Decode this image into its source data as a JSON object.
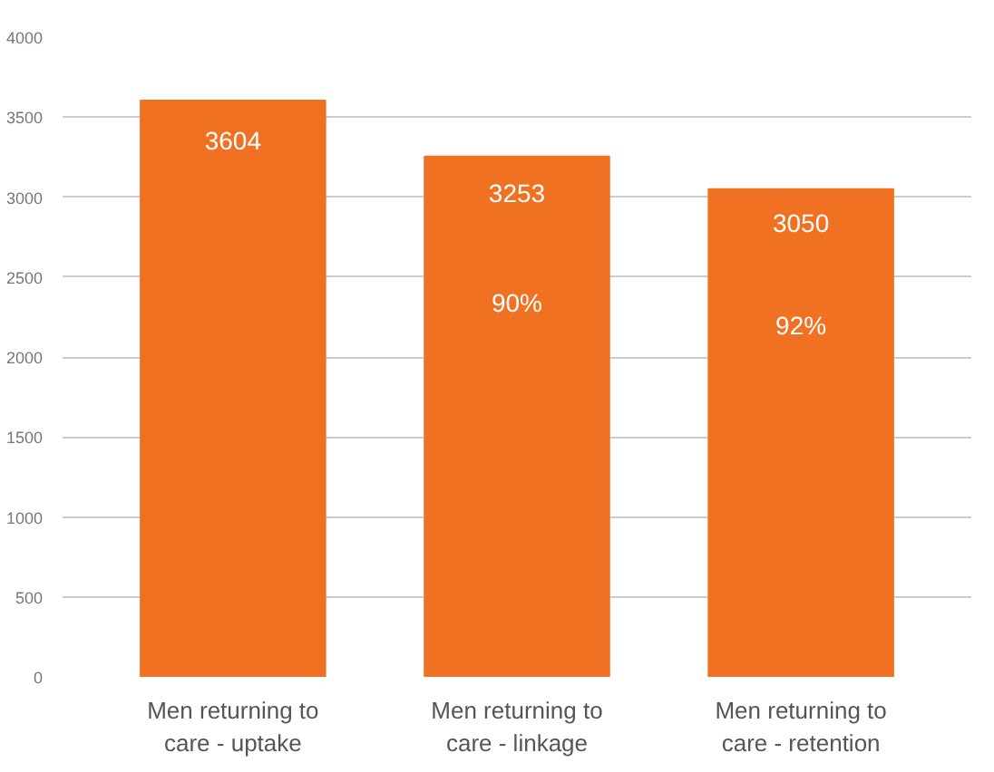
{
  "chart_data": {
    "type": "bar",
    "categories": [
      "Men returning to care - uptake",
      "Men returning to care - linkage",
      "Men returning to care - retention"
    ],
    "values": [
      3604,
      3253,
      3050
    ],
    "color": "#f07121",
    "data_labels": true,
    "annotations": [
      "90%",
      "92%"
    ],
    "ylim": [
      0,
      4000
    ],
    "yticks": [
      0,
      500,
      1000,
      1500,
      2000,
      2500,
      3000,
      3500,
      4000
    ],
    "grid": "y"
  }
}
